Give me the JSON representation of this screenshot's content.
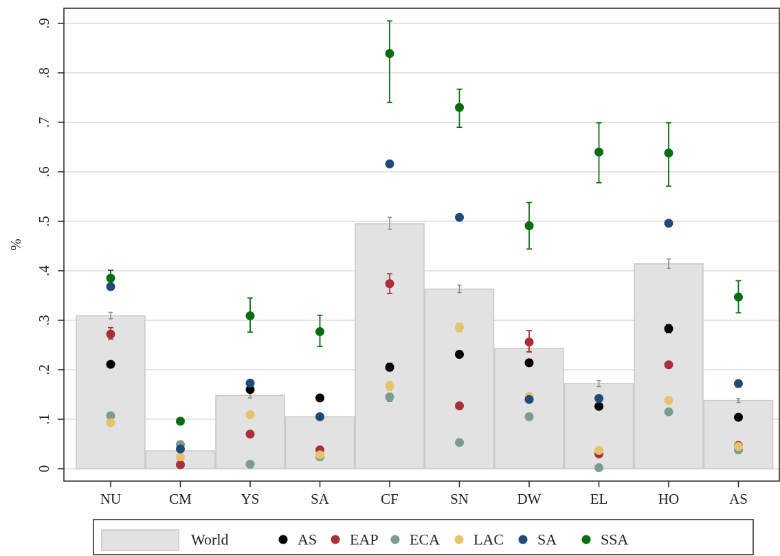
{
  "chart_data": {
    "type": "bar",
    "ylabel": "%",
    "ylim": [
      0,
      0.9
    ],
    "yticks": [
      0,
      0.1,
      0.2,
      0.3,
      0.4,
      0.5,
      0.6,
      0.7,
      0.8,
      0.9
    ],
    "ytick_labels": [
      "0",
      ".1",
      ".2",
      ".3",
      ".4",
      ".5",
      ".6",
      ".7",
      ".8",
      ".9"
    ],
    "grid": true,
    "legend_position": "bottom",
    "categories": [
      "NU",
      "CM",
      "YS",
      "SA",
      "CF",
      "SN",
      "DW",
      "EL",
      "HO",
      "AS"
    ],
    "bar_series": {
      "name": "World",
      "color": "#e2e2e2",
      "values": [
        0.309,
        0.036,
        0.148,
        0.105,
        0.495,
        0.363,
        0.243,
        0.172,
        0.414,
        0.138
      ],
      "err_low": [
        0.303,
        0.033,
        0.143,
        0.101,
        0.484,
        0.356,
        0.237,
        0.166,
        0.405,
        0.134
      ],
      "err_high": [
        0.316,
        0.039,
        0.153,
        0.109,
        0.508,
        0.371,
        0.25,
        0.178,
        0.424,
        0.142
      ]
    },
    "series": [
      {
        "name": "AS",
        "color": "#000000",
        "values": [
          0.211,
          null,
          0.16,
          0.143,
          0.205,
          0.231,
          0.214,
          0.126,
          0.283,
          0.104
        ],
        "err_low": [
          null,
          null,
          null,
          null,
          0.198,
          0.225,
          0.208,
          null,
          0.275,
          null
        ],
        "err_high": [
          null,
          null,
          null,
          null,
          0.213,
          0.238,
          0.221,
          null,
          0.291,
          null
        ]
      },
      {
        "name": "EAP",
        "color": "#a83038",
        "values": [
          0.272,
          0.008,
          0.07,
          0.038,
          0.374,
          0.127,
          0.256,
          0.03,
          0.21,
          0.047
        ],
        "err_low": [
          0.262,
          null,
          null,
          null,
          0.354,
          null,
          0.236,
          null,
          null,
          null
        ],
        "err_high": [
          0.285,
          null,
          null,
          null,
          0.394,
          null,
          0.279,
          null,
          null,
          null
        ]
      },
      {
        "name": "ECA",
        "color": "#7c9c8c",
        "values": [
          0.107,
          0.049,
          0.009,
          0.024,
          0.145,
          0.053,
          0.105,
          0.002,
          0.115,
          0.038
        ],
        "err_low": [
          null,
          null,
          null,
          null,
          0.136,
          null,
          null,
          null,
          null,
          null
        ],
        "err_high": [
          null,
          null,
          null,
          null,
          0.152,
          null,
          null,
          null,
          null,
          null
        ]
      },
      {
        "name": "LAC",
        "color": "#e5c36a",
        "values": [
          0.093,
          0.024,
          0.109,
          0.028,
          0.167,
          0.286,
          0.146,
          0.037,
          0.138,
          0.045
        ],
        "err_low": [
          null,
          null,
          null,
          null,
          0.158,
          0.277,
          null,
          null,
          null,
          null
        ],
        "err_high": [
          null,
          null,
          null,
          null,
          0.176,
          0.294,
          null,
          null,
          null,
          null
        ]
      },
      {
        "name": "SA",
        "color": "#1f4a7a",
        "values": [
          0.368,
          0.04,
          0.173,
          0.105,
          0.616,
          0.508,
          0.14,
          0.142,
          0.496,
          0.172
        ],
        "err_low": [
          null,
          null,
          null,
          null,
          null,
          null,
          null,
          null,
          null,
          null
        ],
        "err_high": [
          null,
          null,
          null,
          null,
          null,
          null,
          null,
          null,
          null,
          null
        ]
      },
      {
        "name": "SSA",
        "color": "#0a6b10",
        "values": [
          0.385,
          0.096,
          0.309,
          0.277,
          0.839,
          0.73,
          0.491,
          0.64,
          0.638,
          0.347
        ],
        "err_low": [
          0.37,
          null,
          0.276,
          0.247,
          0.74,
          0.69,
          0.444,
          0.578,
          0.571,
          0.315
        ],
        "err_high": [
          0.401,
          null,
          0.345,
          0.31,
          0.905,
          0.767,
          0.538,
          0.699,
          0.699,
          0.38
        ]
      }
    ]
  }
}
